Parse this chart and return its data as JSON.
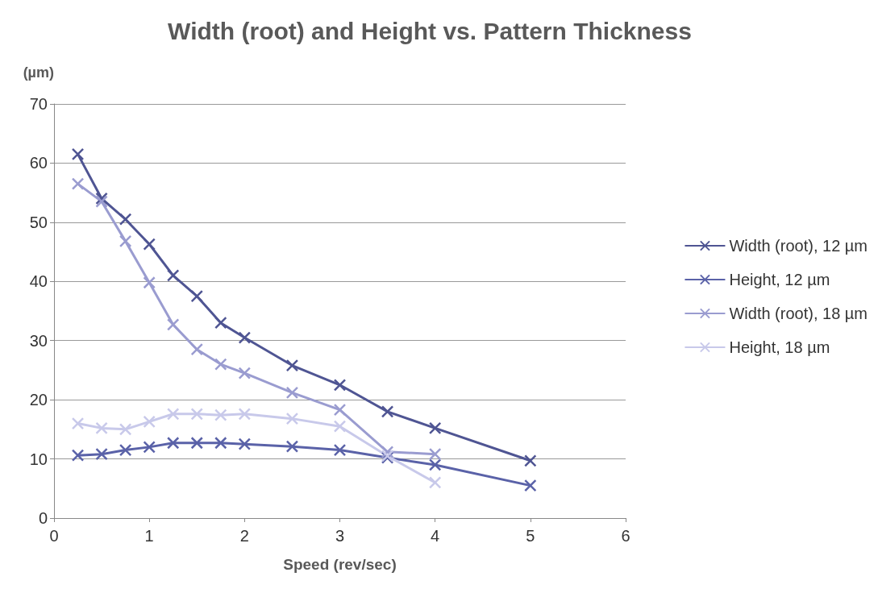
{
  "chart_data": {
    "type": "line",
    "title": "Width (root) and Height vs. Pattern Thickness",
    "ylabel": "(µm)",
    "xlabel": "Speed (rev/sec)",
    "xlim": [
      0,
      6
    ],
    "xticks": [
      0,
      1,
      2,
      3,
      4,
      5,
      6
    ],
    "ylim": [
      0,
      70
    ],
    "yticks": [
      0,
      10,
      20,
      30,
      40,
      50,
      60,
      70
    ],
    "grid": "y",
    "legend": "right",
    "series": [
      {
        "name": "Width (root), 12 µm",
        "color": "#4f5593",
        "marker": "cross",
        "x": [
          0.25,
          0.5,
          0.75,
          1,
          1.25,
          1.5,
          1.75,
          2,
          2.5,
          3,
          3.5,
          4,
          5
        ],
        "values": [
          61.5,
          54,
          50.5,
          46.3,
          41,
          37.5,
          33,
          30.5,
          25.8,
          22.5,
          18,
          15.2,
          9.7
        ]
      },
      {
        "name": "Height, 12 µm",
        "color": "#5a62a8",
        "marker": "cross",
        "x": [
          0.25,
          0.5,
          0.75,
          1,
          1.25,
          1.5,
          1.75,
          2,
          2.5,
          3,
          3.5,
          4,
          5
        ],
        "values": [
          10.6,
          10.8,
          11.5,
          12,
          12.7,
          12.7,
          12.7,
          12.5,
          12.1,
          11.5,
          10.2,
          9,
          5.5
        ]
      },
      {
        "name": "Width (root), 18 µm",
        "color": "#9a9cd0",
        "marker": "cross",
        "x": [
          0.25,
          0.5,
          0.75,
          1,
          1.25,
          1.5,
          1.75,
          2,
          2.5,
          3,
          3.5,
          4
        ],
        "values": [
          56.5,
          53.5,
          46.8,
          39.8,
          32.7,
          28.5,
          26,
          24.5,
          21.2,
          18.3,
          11.2,
          10.8
        ]
      },
      {
        "name": "Height, 18 µm",
        "color": "#c8c9ea",
        "marker": "cross",
        "x": [
          0.25,
          0.5,
          0.75,
          1,
          1.25,
          1.5,
          1.75,
          2,
          2.5,
          3,
          3.5,
          4
        ],
        "values": [
          16,
          15.2,
          15,
          16.3,
          17.6,
          17.6,
          17.4,
          17.6,
          16.8,
          15.5,
          10.5,
          6
        ]
      }
    ]
  }
}
